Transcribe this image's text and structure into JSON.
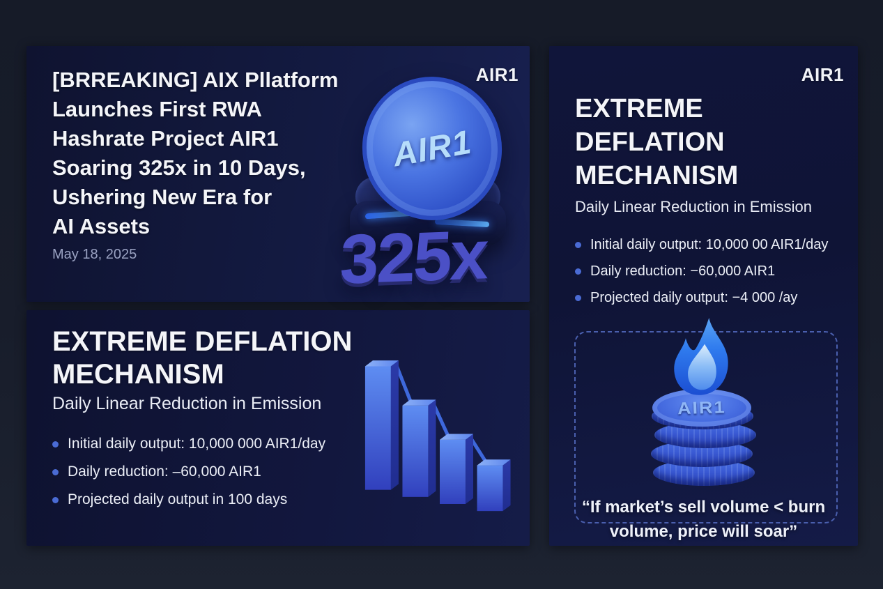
{
  "colors": {
    "outer_background": "#181d2b",
    "panel_background": "#11163a",
    "accent_blue": "#2f6cf0",
    "bullet_dot": "#4a6bd4",
    "multiplier_purple": "#4b50c6",
    "dashed_border": "#4a5fae",
    "text_primary": "#f4f5f9",
    "text_muted": "#9aa2c2"
  },
  "breaking_card": {
    "badge": "AIR1",
    "headline_lines": [
      "[BRREAKING] AIX Pllatform",
      "Launches First RWA",
      "Hashrate Project AIR1",
      "Soaring 325x in 10 Days,",
      "Ushering New Era for",
      "AI Assets"
    ],
    "date": "May 18, 2025",
    "coin_face_label": "AIR1",
    "multiplier": "325x"
  },
  "left_deflation_card": {
    "title_lines": [
      "EXTREME DEFLATION",
      "MECHANISM"
    ],
    "subtitle": "Daily Linear Reduction in Emission",
    "bullets": [
      "Initial daily output: 10,000 000 AIR1/day",
      "Daily reduction: –60,000 AIR1",
      "Projected daily output in 100 days"
    ]
  },
  "right_deflation_card": {
    "badge": "AIR1",
    "title_lines": [
      "EXTREME",
      "DEFLATION",
      "MECHANISM"
    ],
    "subtitle": "Daily Linear Reduction in Emission",
    "bullets": [
      "Initial daily output: 10,000 00 AIR1/day",
      "Daily reduction:  −60,000 AIR1",
      "Projected daily output: −4 000 /ay"
    ],
    "coin_stack_label": "AIR1",
    "quote_lines": [
      "“If market’s sell volume < burn",
      "volume, price will soar”"
    ]
  },
  "chart_data": {
    "type": "bar",
    "categories": [
      "",
      "",
      "",
      ""
    ],
    "values": [
      100,
      74,
      52,
      37
    ],
    "title": "",
    "xlabel": "",
    "ylabel": "",
    "ylim": [
      0,
      100
    ],
    "grid": false,
    "legend": false,
    "style": "3d declining blue bars connected by a downward line, no axes"
  }
}
